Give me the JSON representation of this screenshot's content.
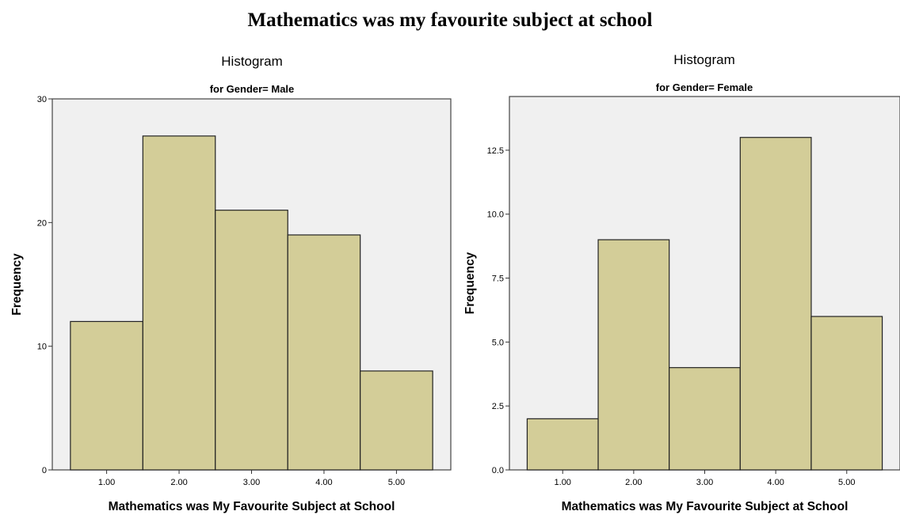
{
  "page_title": "Mathematics was my favourite subject at school",
  "chart_data": [
    {
      "type": "bar",
      "title": "Histogram",
      "subtitle": "for Gender= Male",
      "xlabel": "Mathematics was My Favourite Subject at School",
      "ylabel": "Frequency",
      "categories": [
        "1.00",
        "2.00",
        "3.00",
        "4.00",
        "5.00"
      ],
      "values": [
        12,
        27,
        21,
        19,
        8
      ],
      "yticks": [
        "0",
        "10",
        "20",
        "30"
      ],
      "ylim": [
        0,
        30
      ],
      "bar_color": "#d3cd98",
      "plot_background": "#f0f0f0",
      "grid": false
    },
    {
      "type": "bar",
      "title": "Histogram",
      "subtitle": "for Gender= Female",
      "xlabel": "Mathematics was My Favourite Subject at School",
      "ylabel": "Frequency",
      "categories": [
        "1.00",
        "2.00",
        "3.00",
        "4.00",
        "5.00"
      ],
      "values": [
        2,
        9,
        4,
        13,
        6
      ],
      "yticks": [
        "0.0",
        "2.5",
        "5.0",
        "7.5",
        "10.0",
        "12.5"
      ],
      "ylim": [
        0,
        12.5
      ],
      "bar_color": "#d3cd98",
      "plot_background": "#f0f0f0",
      "grid": false
    }
  ]
}
